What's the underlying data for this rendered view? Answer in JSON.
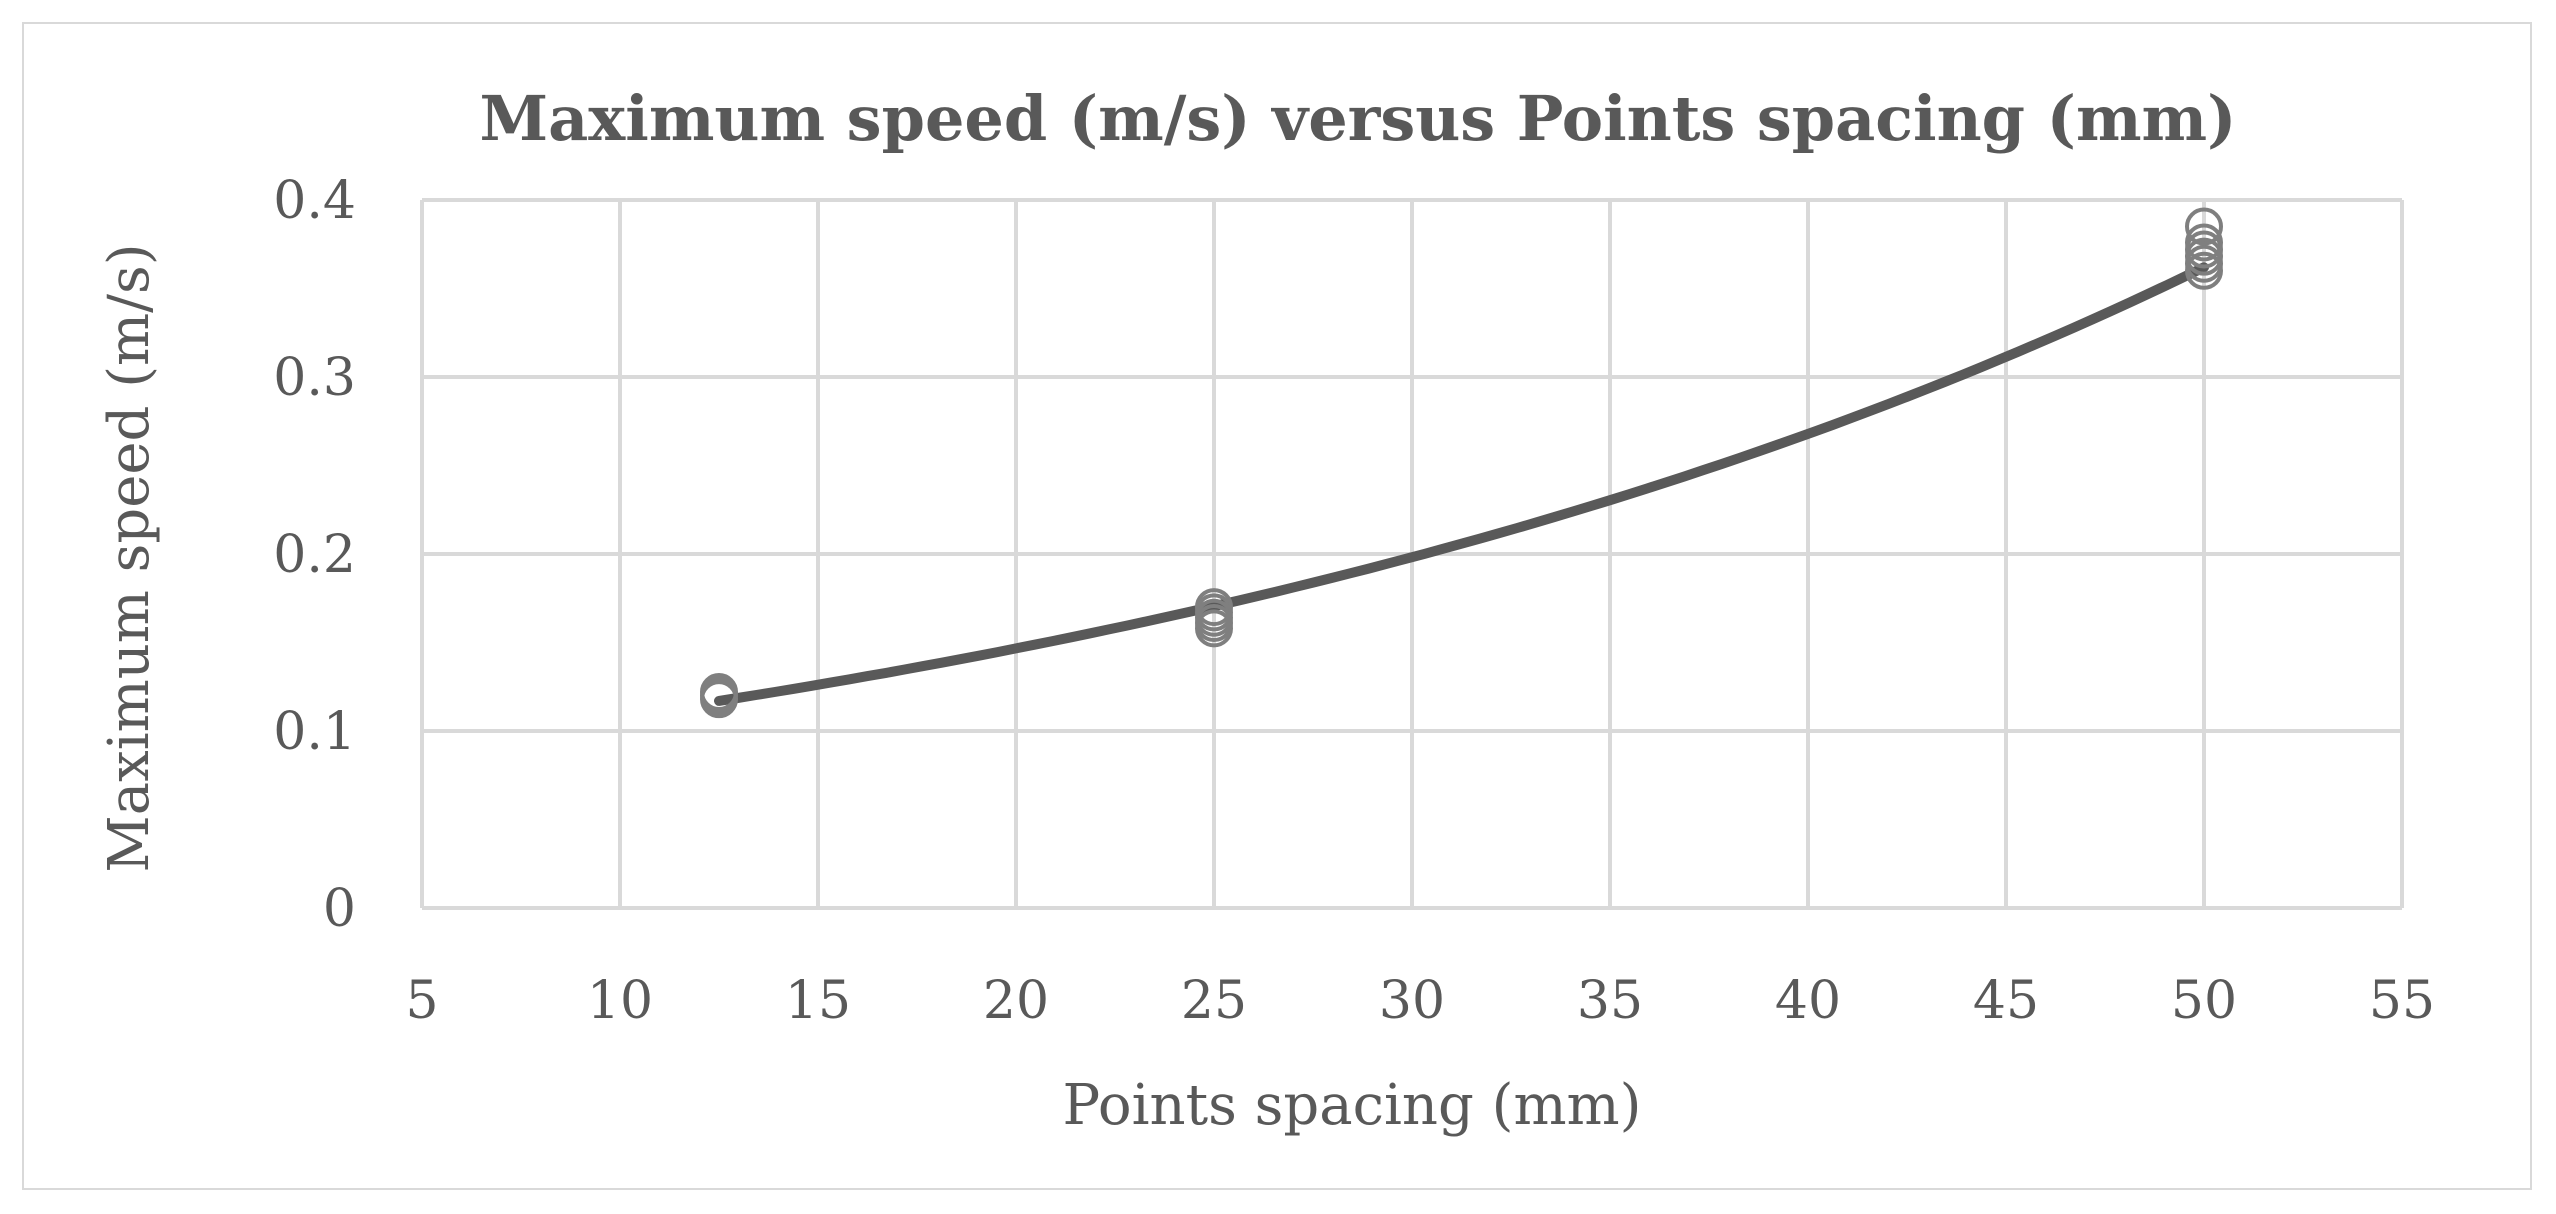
{
  "chart_data": {
    "type": "scatter",
    "title": "Maximum speed (m/s) versus Points spacing (mm)",
    "xlabel": "Points spacing (mm)",
    "ylabel": "Maximum speed (m/s)",
    "xlim": [
      5,
      55
    ],
    "ylim": [
      0,
      0.4
    ],
    "x_ticks": [
      "5",
      "10",
      "15",
      "20",
      "25",
      "30",
      "35",
      "40",
      "45",
      "50",
      "55"
    ],
    "y_ticks": [
      "0",
      "0.1",
      "0.2",
      "0.3",
      "0.4"
    ],
    "grid": true,
    "legend": "none",
    "colors": {
      "marker": "#7f7f7f",
      "trendline": "#595959",
      "grid": "#d9d9d9"
    },
    "series": [
      {
        "marker": "open-circle",
        "points": [
          {
            "x": 12.5,
            "y": 0.118
          },
          {
            "x": 12.5,
            "y": 0.12
          },
          {
            "x": 12.5,
            "y": 0.122
          },
          {
            "x": 25,
            "y": 0.158
          },
          {
            "x": 25,
            "y": 0.161
          },
          {
            "x": 25,
            "y": 0.164
          },
          {
            "x": 25,
            "y": 0.167
          },
          {
            "x": 25,
            "y": 0.17
          },
          {
            "x": 50,
            "y": 0.36
          },
          {
            "x": 50,
            "y": 0.364
          },
          {
            "x": 50,
            "y": 0.368
          },
          {
            "x": 50,
            "y": 0.372
          },
          {
            "x": 50,
            "y": 0.376
          },
          {
            "x": 50,
            "y": 0.385
          }
        ]
      }
    ],
    "trendline": {
      "type": "exponential",
      "x_range": [
        12.5,
        50
      ],
      "points": [
        {
          "x": 12.5,
          "y": 0.117
        },
        {
          "x": 25,
          "y": 0.17
        },
        {
          "x": 30,
          "y": 0.198
        },
        {
          "x": 40,
          "y": 0.268
        },
        {
          "x": 50,
          "y": 0.362
        }
      ]
    }
  }
}
